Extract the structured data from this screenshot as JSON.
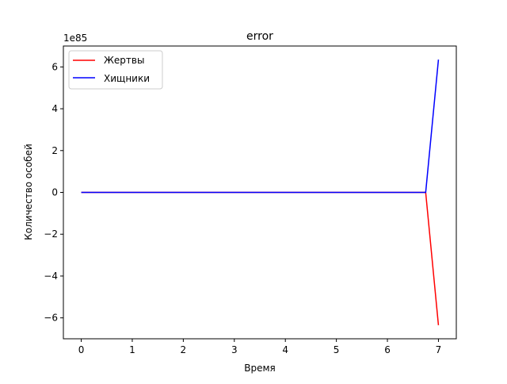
{
  "chart_data": {
    "type": "line",
    "title": "error",
    "xlabel": "Время",
    "ylabel": "Количество особей",
    "y_offset_label": "1e85",
    "xlim": [
      -0.35,
      7.35
    ],
    "ylim": [
      -7.0,
      7.0
    ],
    "xticks": [
      0,
      1,
      2,
      3,
      4,
      5,
      6,
      7
    ],
    "yticks": [
      -6,
      -4,
      -2,
      0,
      2,
      4,
      6
    ],
    "ytick_labels": [
      "−6",
      "−4",
      "−2",
      "0",
      "2",
      "4",
      "6"
    ],
    "grid": false,
    "legend_position": "upper-left",
    "y_unit_scale": "1e85",
    "series": [
      {
        "name": "Жертвы",
        "color": "#ff0000",
        "x": [
          0,
          6.75,
          7
        ],
        "y": [
          0,
          0,
          -6.35
        ]
      },
      {
        "name": "Хищники",
        "color": "#0000ff",
        "x": [
          0,
          6.75,
          7
        ],
        "y": [
          0,
          0,
          6.35
        ]
      }
    ]
  }
}
